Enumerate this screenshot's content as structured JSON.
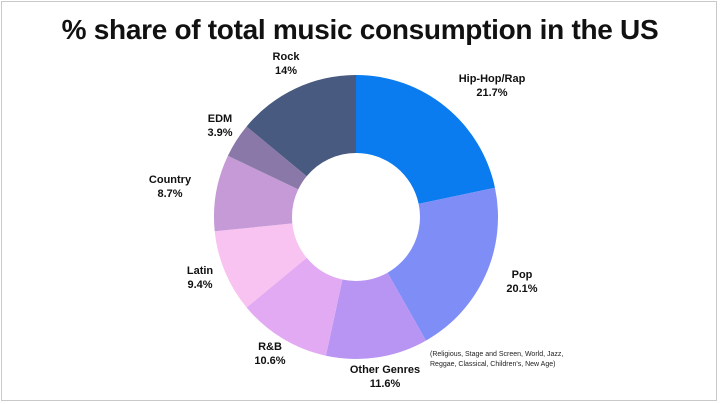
{
  "title": "% share of total music consumption in the US",
  "note": "(Religious, Stage and Screen, World, Jazz, Reggae, Classical, Children's, New Age)",
  "chart_data": {
    "type": "pie",
    "donut": true,
    "title": "% share of total music consumption in the US",
    "slices": [
      {
        "label": "Hip-Hop/Rap",
        "value": 21.7,
        "value_label": "21.7%",
        "color": "#0a7cf0"
      },
      {
        "label": "Pop",
        "value": 20.1,
        "value_label": "20.1%",
        "color": "#7f8df7"
      },
      {
        "label": "Other Genres",
        "value": 11.6,
        "value_label": "11.6%",
        "color": "#b895f2"
      },
      {
        "label": "R&B",
        "value": 10.6,
        "value_label": "10.6%",
        "color": "#e2aaf3"
      },
      {
        "label": "Latin",
        "value": 9.4,
        "value_label": "9.4%",
        "color": "#f8c2f1"
      },
      {
        "label": "Country",
        "value": 8.7,
        "value_label": "8.7%",
        "color": "#c59ad6"
      },
      {
        "label": "EDM",
        "value": 3.9,
        "value_label": "3.9%",
        "color": "#8a78a8"
      },
      {
        "label": "Rock",
        "value": 14,
        "value_label": "14%",
        "color": "#485a80"
      }
    ]
  }
}
